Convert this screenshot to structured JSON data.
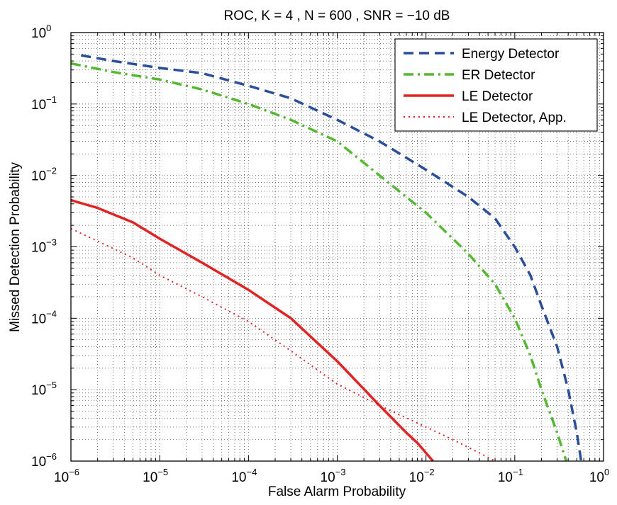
{
  "chart_data": {
    "type": "line",
    "title": "ROC,  K = 4 , N = 600 , SNR = −10 dB",
    "xlabel": "False Alarm Probability",
    "ylabel": "Missed Detection Probability",
    "xscale": "log",
    "yscale": "log",
    "xlim": [
      1e-06,
      1
    ],
    "ylim": [
      1e-06,
      1
    ],
    "grid": true,
    "legend_position": "top-right",
    "tick_base": "10",
    "x_tick_exponents": [
      "−6",
      "−5",
      "−4",
      "−3",
      "−2",
      "−1",
      "0"
    ],
    "y_tick_exponents": [
      "0",
      "−1",
      "−2",
      "−3",
      "−4",
      "−5",
      "−6"
    ],
    "series": [
      {
        "name": "Energy Detector",
        "color": "#2a4e9a",
        "style": "dashed",
        "x": [
          1.3e-06,
          3e-06,
          1e-05,
          3e-05,
          0.0001,
          0.0003,
          0.001,
          0.003,
          0.01,
          0.03,
          0.06,
          0.1,
          0.15,
          0.2,
          0.3,
          0.4,
          0.5,
          0.56
        ],
        "y": [
          0.48,
          0.4,
          0.32,
          0.27,
          0.18,
          0.12,
          0.06,
          0.03,
          0.012,
          0.005,
          0.0025,
          0.001,
          0.0004,
          0.00015,
          4e-05,
          1e-05,
          2.5e-06,
          1e-06
        ]
      },
      {
        "name": "ER Detector",
        "color": "#55b831",
        "style": "dashdot",
        "x": [
          1e-06,
          3e-06,
          1e-05,
          3e-05,
          0.0001,
          0.0003,
          0.001,
          0.003,
          0.01,
          0.03,
          0.06,
          0.1,
          0.15,
          0.2,
          0.3,
          0.38
        ],
        "y": [
          0.37,
          0.28,
          0.22,
          0.16,
          0.1,
          0.06,
          0.03,
          0.01,
          0.003,
          0.0008,
          0.0003,
          0.0001,
          3e-05,
          1e-05,
          2.5e-06,
          1e-06
        ]
      },
      {
        "name": "LE Detector",
        "color": "#e02424",
        "style": "solid",
        "x": [
          1e-06,
          2e-06,
          5e-06,
          1e-05,
          3e-05,
          0.0001,
          0.0003,
          0.001,
          0.003,
          0.006,
          0.008,
          0.01,
          0.012
        ],
        "y": [
          0.0045,
          0.0035,
          0.0022,
          0.0013,
          0.0006,
          0.00025,
          0.0001,
          2.5e-05,
          6e-06,
          2.5e-06,
          1.8e-06,
          1.3e-06,
          1e-06
        ]
      },
      {
        "name": "LE Detector, App.",
        "color": "#e02424",
        "style": "dotted",
        "x": [
          1e-06,
          2e-06,
          5e-06,
          1e-05,
          3e-05,
          0.0001,
          0.0003,
          0.001,
          0.003,
          0.01,
          0.02,
          0.04,
          0.06
        ],
        "y": [
          0.0018,
          0.0012,
          0.0007,
          0.0004,
          0.0002,
          9e-05,
          3.5e-05,
          1.2e-05,
          6e-06,
          3e-06,
          2e-06,
          1.3e-06,
          1e-06
        ]
      }
    ]
  }
}
